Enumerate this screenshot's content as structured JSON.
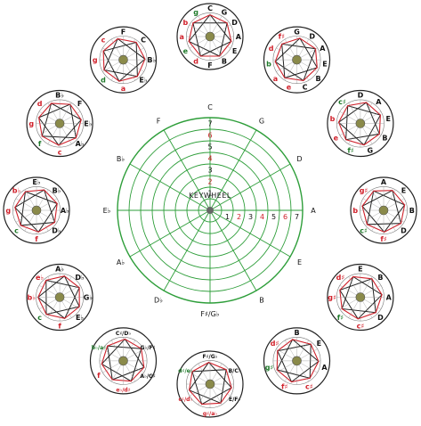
{
  "center_label": "KEYWHEEL",
  "colors": {
    "wheel_green": "#2e9e3a",
    "red": "#d0202a",
    "black": "#222222",
    "hub": "#8a8a4a",
    "dark_green": "#1f7a2a"
  },
  "ring_numbers": [
    "1",
    "2",
    "3",
    "4",
    "5",
    "6",
    "7"
  ],
  "spoke_keys": [
    "C",
    "G",
    "D",
    "A",
    "E",
    "B",
    "F♯/G♭",
    "D♭",
    "A♭",
    "E♭",
    "B♭",
    "F"
  ],
  "wheels": [
    {
      "key": "C",
      "labels": [
        "C",
        "G",
        "D",
        "A",
        "E",
        "B",
        "F",
        "d",
        "e",
        "a",
        "b",
        "g"
      ]
    },
    {
      "key": "G",
      "labels": [
        "G",
        "D",
        "A",
        "E",
        "B",
        "C",
        "e",
        "a",
        "b",
        "d",
        "f♯"
      ]
    },
    {
      "key": "D",
      "labels": [
        "D",
        "A",
        "E",
        "B",
        "G",
        "f♯",
        "e",
        "b",
        "c♯"
      ]
    },
    {
      "key": "A",
      "labels": [
        "A",
        "E",
        "B",
        "D",
        "f♯",
        "c♯",
        "b",
        "g♯"
      ]
    },
    {
      "key": "E",
      "labels": [
        "E",
        "B",
        "A",
        "D",
        "c♯",
        "f♯",
        "g♯",
        "d♯"
      ]
    },
    {
      "key": "B",
      "labels": [
        "B",
        "E",
        "A",
        "c♯",
        "f♯",
        "g♯",
        "d♯"
      ]
    },
    {
      "key": "F♯/G♭",
      "labels": [
        "F♯/G♭",
        "B/C♭",
        "E/F♭",
        "g♯/a♭",
        "c♯/d♭",
        "d♯/e♭"
      ]
    },
    {
      "key": "D♭",
      "labels": [
        "C♯/D♭",
        "G♭/F♯",
        "A♭/G♯",
        "e♭/d♯",
        "f",
        "b♭/a♯"
      ]
    },
    {
      "key": "A♭",
      "labels": [
        "A♭",
        "D♭",
        "G♭",
        "E♭",
        "f",
        "c",
        "b♭",
        "e♭"
      ]
    },
    {
      "key": "E♭",
      "labels": [
        "E♭",
        "B♭",
        "A♭",
        "D♭",
        "f",
        "c",
        "g",
        "b♭"
      ]
    },
    {
      "key": "B♭",
      "labels": [
        "B♭",
        "F",
        "E♭",
        "A♭",
        "c",
        "f",
        "g",
        "d"
      ]
    },
    {
      "key": "F",
      "labels": [
        "F",
        "C",
        "B♭",
        "E♭",
        "a",
        "d",
        "g",
        "c"
      ]
    }
  ]
}
